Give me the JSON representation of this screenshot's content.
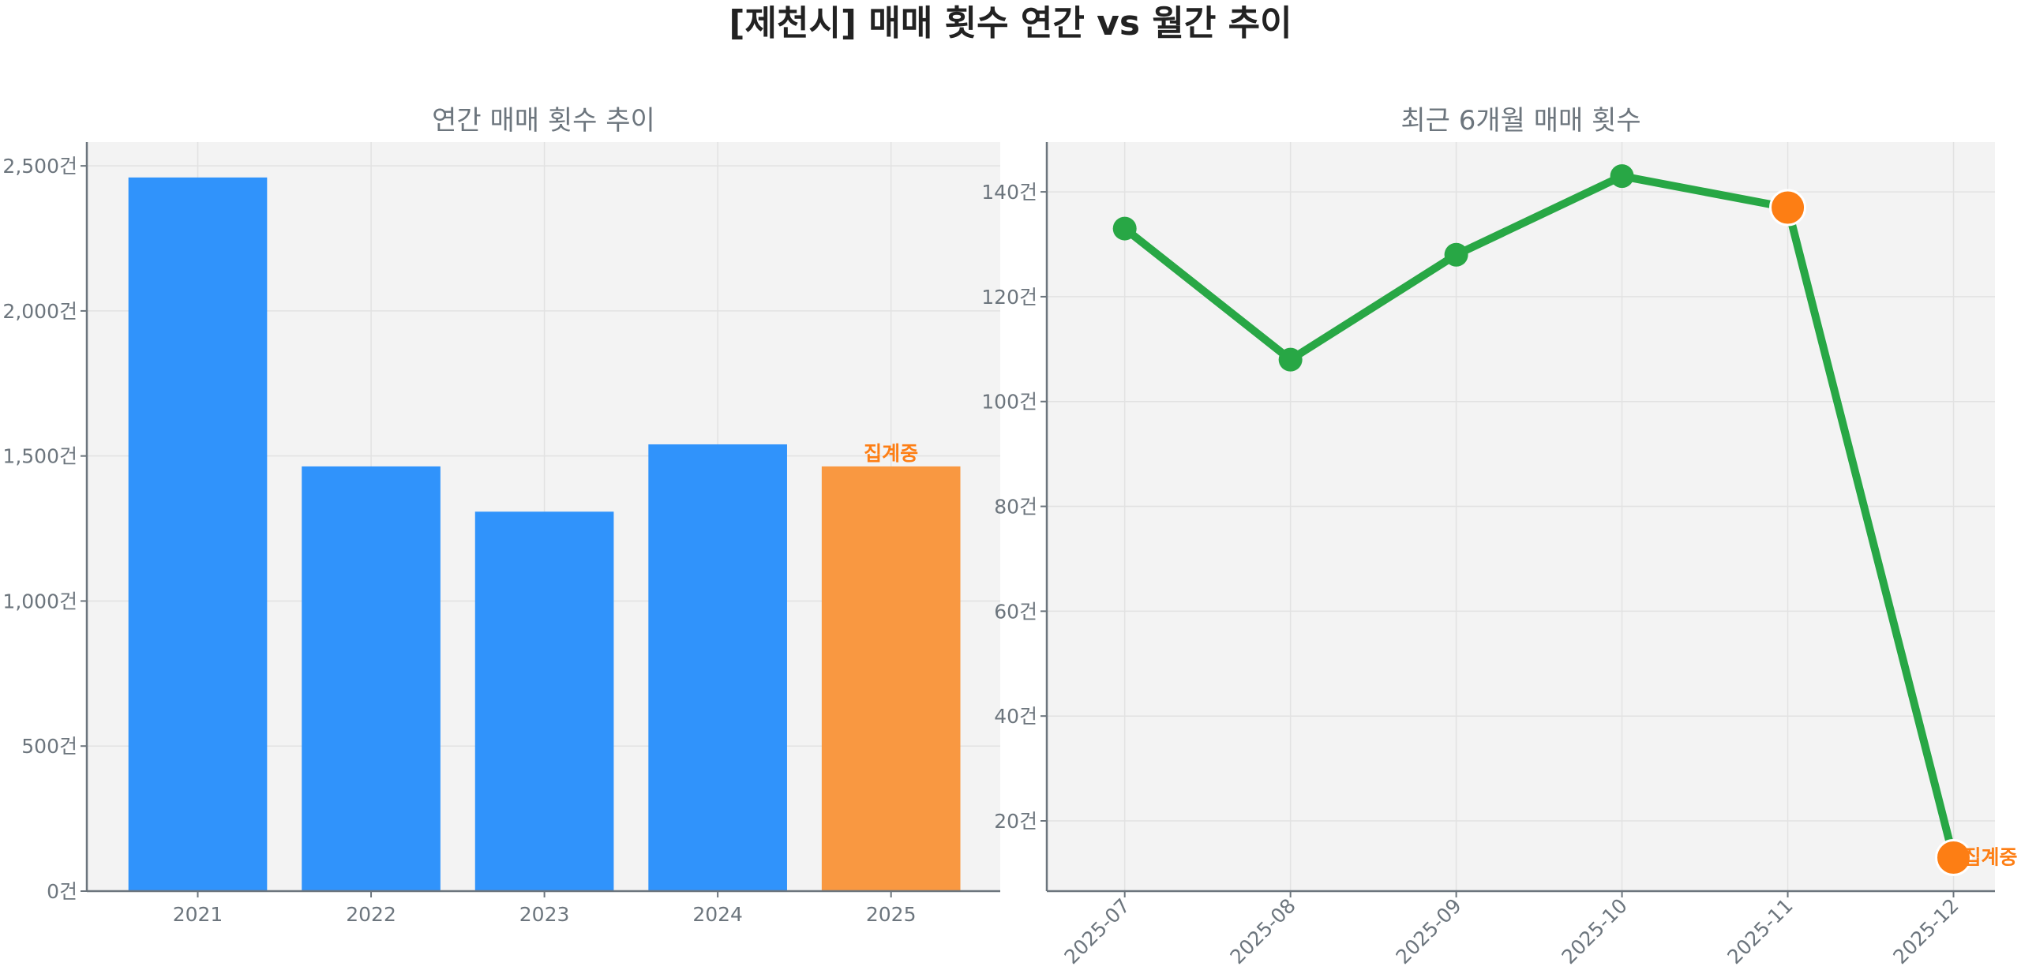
{
  "title": "[제천시] 매매 횟수 연간 vs 월간 추이",
  "colors": {
    "bar": "#3093fb",
    "bar_partial": "#f99841",
    "line": "#28a745",
    "partial_marker": "#fd7e14",
    "partial_text": "#fd7e14",
    "plot_bg": "#f3f3f3"
  },
  "chart_data": [
    {
      "type": "bar",
      "title": "연간 매매 횟수 추이",
      "categories": [
        "2021",
        "2022",
        "2023",
        "2024",
        "2025"
      ],
      "values": [
        2460,
        1464,
        1308,
        1540,
        1464
      ],
      "partial_index": 4,
      "annotation": "집계중",
      "yticks": [
        0,
        500,
        1000,
        1500,
        2000,
        2500
      ],
      "ytick_labels": [
        "0건",
        "500건",
        "1,000건",
        "1,500건",
        "2,000건",
        "2,500건"
      ],
      "ylim": [
        0,
        2582
      ],
      "grid": true,
      "xlabel": "",
      "ylabel": ""
    },
    {
      "type": "line",
      "title": "최근 6개월 매매 횟수",
      "categories": [
        "2025-07",
        "2025-08",
        "2025-09",
        "2025-10",
        "2025-11",
        "2025-12"
      ],
      "values": [
        133,
        108,
        128,
        143,
        137,
        13
      ],
      "highlight_indices": [
        4,
        5
      ],
      "annotation": "집계중",
      "yticks": [
        20,
        40,
        60,
        80,
        100,
        120,
        140
      ],
      "ytick_labels": [
        "20건",
        "40건",
        "60건",
        "80건",
        "100건",
        "120건",
        "140건"
      ],
      "ylim": [
        6.6,
        149.5
      ],
      "grid": true,
      "xlabel": "",
      "ylabel": ""
    }
  ]
}
